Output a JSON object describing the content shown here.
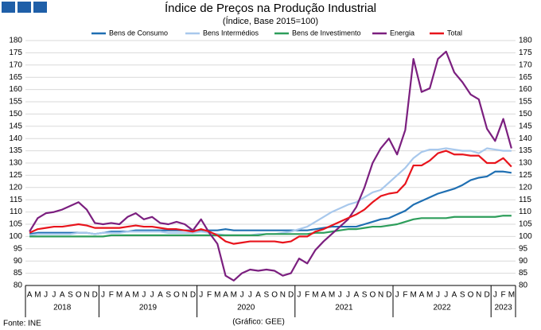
{
  "chart_data": {
    "type": "line",
    "title": "Índice de Preços na Produção Industrial",
    "subtitle": "(Índice, Base 2015=100)",
    "source": "Fonte: INE",
    "credit": "(Gráfico: GEE)",
    "categories": [
      "A",
      "M",
      "J",
      "J",
      "A",
      "S",
      "O",
      "N",
      "D",
      "J",
      "F",
      "M",
      "A",
      "M",
      "J",
      "J",
      "A",
      "S",
      "O",
      "N",
      "D",
      "J",
      "F",
      "M",
      "A",
      "M",
      "J",
      "J",
      "A",
      "S",
      "O",
      "N",
      "D",
      "J",
      "F",
      "M",
      "A",
      "M",
      "J",
      "J",
      "A",
      "S",
      "O",
      "N",
      "D",
      "J",
      "F",
      "M",
      "A",
      "M",
      "J",
      "J",
      "A",
      "S",
      "O",
      "N",
      "D",
      "J",
      "F",
      "M"
    ],
    "category_years": [
      "2018",
      "2018",
      "2018",
      "2018",
      "2018",
      "2018",
      "2018",
      "2018",
      "2018",
      "2019",
      "2019",
      "2019",
      "2019",
      "2019",
      "2019",
      "2019",
      "2019",
      "2019",
      "2019",
      "2019",
      "2019",
      "2020",
      "2020",
      "2020",
      "2020",
      "2020",
      "2020",
      "2020",
      "2020",
      "2020",
      "2020",
      "2020",
      "2020",
      "2021",
      "2021",
      "2021",
      "2021",
      "2021",
      "2021",
      "2021",
      "2021",
      "2021",
      "2021",
      "2021",
      "2021",
      "2022",
      "2022",
      "2022",
      "2022",
      "2022",
      "2022",
      "2022",
      "2022",
      "2022",
      "2022",
      "2022",
      "2022",
      "2023",
      "2023",
      "2023"
    ],
    "ylim": [
      80,
      180
    ],
    "yticks": [
      80,
      85,
      90,
      95,
      100,
      105,
      110,
      115,
      120,
      125,
      130,
      135,
      140,
      145,
      150,
      155,
      160,
      165,
      170,
      175,
      180
    ],
    "grid": true,
    "series": [
      {
        "name": "Bens de Consumo",
        "color": "#1f6fb2",
        "values": [
          101,
          101.5,
          101.5,
          101.5,
          101.5,
          101.5,
          101.5,
          101.5,
          101,
          101.5,
          102,
          102,
          102,
          102.5,
          102.5,
          102.5,
          102.5,
          102.5,
          102.5,
          102.5,
          102.5,
          102.5,
          102.5,
          102.5,
          103,
          102.5,
          102.5,
          102.5,
          102.5,
          102.5,
          102.5,
          102.5,
          102.5,
          102.5,
          102.5,
          103,
          103.5,
          104,
          104,
          104,
          104,
          105,
          106,
          107,
          107.5,
          109,
          110.5,
          113,
          114.5,
          116,
          117.5,
          118.5,
          119.5,
          121,
          123,
          124,
          124.5,
          126.5,
          126.5,
          126
        ]
      },
      {
        "name": "Bens Intermédios",
        "color": "#a8c8ec",
        "values": [
          100.5,
          101,
          101,
          101,
          101,
          101,
          101.5,
          101.5,
          101,
          101.5,
          101.5,
          101.5,
          102,
          102,
          102,
          102,
          102,
          101.5,
          101.5,
          101.5,
          101.5,
          102,
          101.5,
          101,
          100.5,
          100.5,
          100.5,
          100.5,
          101,
          101,
          101,
          101.5,
          102,
          103,
          104,
          106,
          108,
          110,
          111.5,
          113,
          114,
          116,
          118,
          119,
          122,
          125,
          128,
          132,
          134.5,
          135.5,
          135.5,
          136,
          135.5,
          135,
          135,
          134,
          136,
          135.5,
          135,
          135
        ]
      },
      {
        "name": "Bens de Investimento",
        "color": "#2e9e5b",
        "values": [
          100,
          100,
          100,
          100,
          100,
          100,
          100,
          100,
          100,
          100,
          100.5,
          100.5,
          100.5,
          100.5,
          100.5,
          100.5,
          100.5,
          100.5,
          100.5,
          100.5,
          100.5,
          100.5,
          100.5,
          100.5,
          100.5,
          100.5,
          100.5,
          100.5,
          100.5,
          101,
          101,
          101,
          101,
          101,
          101,
          101.5,
          101.5,
          102,
          102.5,
          103,
          103,
          103.5,
          104,
          104,
          104.5,
          105,
          106,
          107,
          107.5,
          107.5,
          107.5,
          107.5,
          108,
          108,
          108,
          108,
          108,
          108,
          108.5,
          108.5
        ]
      },
      {
        "name": "Energia",
        "color": "#7b1f7f",
        "values": [
          102,
          107.5,
          109.5,
          110,
          111,
          112.5,
          114,
          111,
          105.5,
          105,
          105.5,
          105,
          108,
          109.5,
          107,
          108,
          105.5,
          105,
          106,
          105,
          102.5,
          107,
          101.5,
          97,
          84,
          82,
          85,
          86.5,
          86,
          86.5,
          86,
          84,
          85,
          91,
          89,
          94.5,
          98,
          101,
          104,
          107,
          112,
          120,
          130,
          136,
          140,
          133.5,
          143.5,
          172.5,
          159,
          160.5,
          172.5,
          175.5,
          167,
          163,
          158,
          156,
          144,
          139,
          148,
          136
        ]
      },
      {
        "name": "Total",
        "color": "#e8141c",
        "values": [
          101.5,
          103,
          103.5,
          104,
          104,
          104.5,
          105,
          104.5,
          103.5,
          103.5,
          103.5,
          103.5,
          104,
          104.5,
          104,
          104,
          103.5,
          103,
          103,
          102.5,
          102,
          103,
          102,
          100.5,
          98,
          97,
          97.5,
          98,
          98,
          98,
          98,
          97.5,
          98,
          100,
          100,
          102,
          103,
          104.5,
          106,
          107.5,
          109,
          111,
          114,
          116.5,
          117.5,
          118,
          121.5,
          129,
          129,
          131,
          134,
          135,
          133.5,
          133.5,
          133,
          133,
          130,
          130,
          132,
          128.5
        ]
      }
    ]
  }
}
